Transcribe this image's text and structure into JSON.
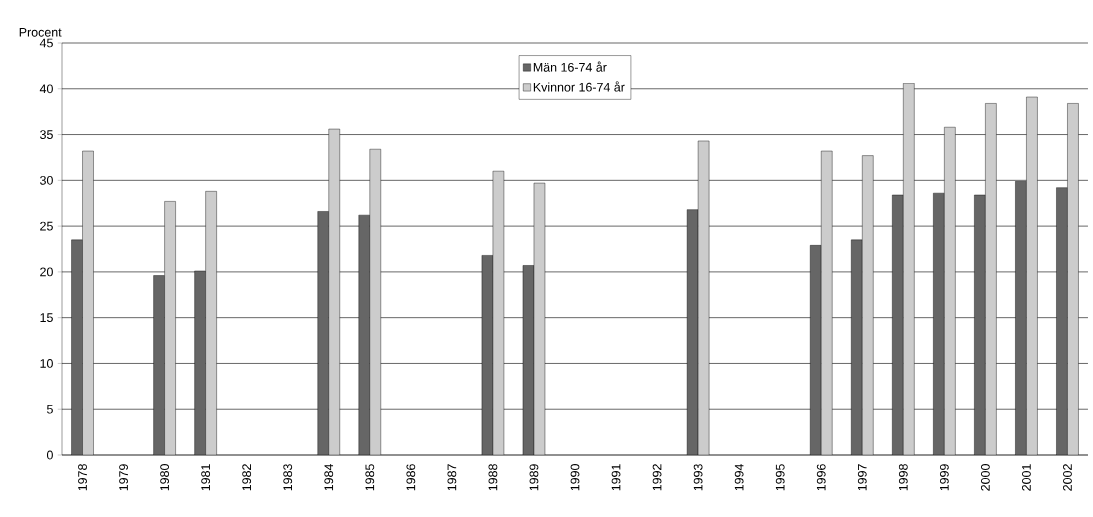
{
  "chart_data": {
    "type": "bar",
    "ylabel": "Procent",
    "categories": [
      "1978",
      "1979",
      "1980",
      "1981",
      "1982",
      "1983",
      "1984",
      "1985",
      "1986",
      "1987",
      "1988",
      "1989",
      "1990",
      "1991",
      "1992",
      "1993",
      "1994",
      "1995",
      "1996",
      "1997",
      "1998",
      "1999",
      "2000",
      "2001",
      "2002"
    ],
    "series": [
      {
        "name": "Män 16-74 år",
        "color": "#666666",
        "values": [
          23.5,
          null,
          19.6,
          20.1,
          null,
          null,
          26.6,
          26.2,
          null,
          null,
          21.8,
          20.7,
          null,
          null,
          null,
          26.8,
          null,
          null,
          22.9,
          23.5,
          28.4,
          28.6,
          28.4,
          29.9,
          29.2
        ]
      },
      {
        "name": "Kvinnor 16-74 år",
        "color": "#cccccc",
        "values": [
          33.2,
          null,
          27.7,
          28.8,
          null,
          null,
          35.6,
          33.4,
          null,
          null,
          31.0,
          29.7,
          null,
          null,
          null,
          34.3,
          null,
          null,
          33.2,
          32.7,
          40.6,
          35.8,
          38.4,
          39.1,
          38.4
        ]
      }
    ],
    "ylim": [
      0,
      45
    ],
    "yticks": [
      0,
      5,
      10,
      15,
      20,
      25,
      30,
      35,
      40,
      45
    ],
    "grid": "y",
    "legend": "top"
  }
}
